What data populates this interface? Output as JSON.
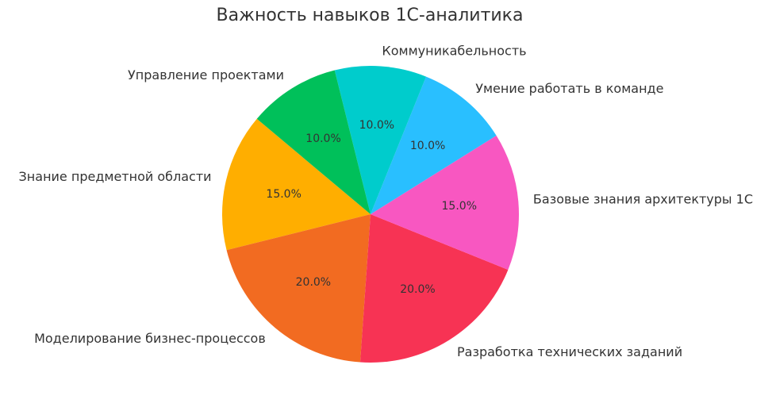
{
  "chart_data": {
    "type": "pie",
    "title": "Важность навыков 1С-аналитика",
    "categories": [
      "Знание предметной области",
      "Моделирование бизнес-процессов",
      "Разработка технических заданий",
      "Базовые знания архитектуры 1С",
      "Умение работать в команде",
      "Коммуникабельность",
      "Управление проектами"
    ],
    "values": [
      15,
      20,
      20,
      15,
      10,
      10,
      10
    ],
    "value_labels": [
      "15.0%",
      "20.0%",
      "20.0%",
      "15.0%",
      "10.0%",
      "10.0%",
      "10.0%"
    ],
    "colors": [
      "#ffae00",
      "#f26b21",
      "#f73354",
      "#f857c1",
      "#29bfff",
      "#00cccc",
      "#00c05a"
    ],
    "startangle": 140
  }
}
